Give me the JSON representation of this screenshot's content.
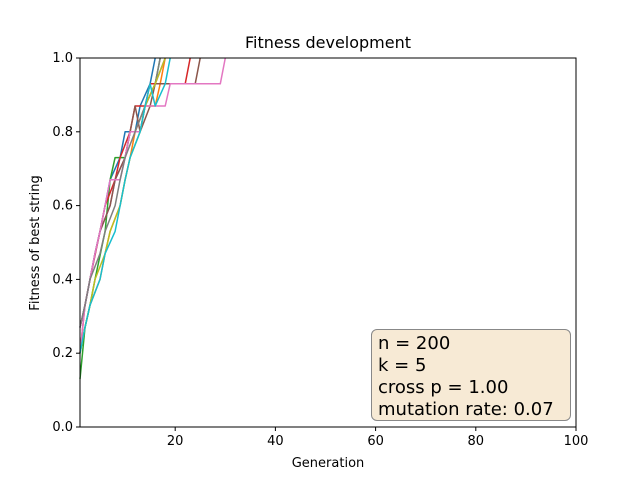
{
  "chart_data": {
    "type": "line",
    "title": "Fitness development",
    "xlabel": "Generation",
    "ylabel": "Fitness of best string",
    "xlim": [
      1,
      100
    ],
    "ylim": [
      0.0,
      1.0
    ],
    "xticks": [
      20,
      40,
      60,
      80,
      100
    ],
    "yticks": [
      0.0,
      0.2,
      0.4,
      0.6,
      0.8,
      1.0
    ],
    "grid": false,
    "colors": [
      "#1f77b4",
      "#ff7f0e",
      "#2ca02c",
      "#d62728",
      "#9467bd",
      "#8c564b",
      "#e377c2",
      "#7f7f7f",
      "#bcbd22",
      "#17becf"
    ],
    "series": [
      {
        "values": [
          [
            1,
            0.27
          ],
          [
            2,
            0.33
          ],
          [
            3,
            0.4
          ],
          [
            4,
            0.47
          ],
          [
            5,
            0.53
          ],
          [
            6,
            0.6
          ],
          [
            7,
            0.67
          ],
          [
            9,
            0.73
          ],
          [
            10,
            0.8
          ],
          [
            12,
            0.8
          ],
          [
            13,
            0.87
          ],
          [
            15,
            0.93
          ],
          [
            16,
            1.0
          ]
        ]
      },
      {
        "values": [
          [
            1,
            0.2
          ],
          [
            2,
            0.27
          ],
          [
            3,
            0.33
          ],
          [
            5,
            0.4
          ],
          [
            6,
            0.47
          ],
          [
            7,
            0.53
          ],
          [
            9,
            0.6
          ],
          [
            10,
            0.67
          ],
          [
            11,
            0.73
          ],
          [
            12,
            0.8
          ],
          [
            14,
            0.87
          ],
          [
            16,
            0.87
          ],
          [
            17,
            0.93
          ],
          [
            18,
            1.0
          ]
        ]
      },
      {
        "values": [
          [
            1,
            0.13
          ],
          [
            2,
            0.27
          ],
          [
            3,
            0.33
          ],
          [
            4,
            0.4
          ],
          [
            6,
            0.53
          ],
          [
            7,
            0.67
          ],
          [
            8,
            0.73
          ],
          [
            10,
            0.73
          ],
          [
            11,
            0.8
          ],
          [
            13,
            0.8
          ],
          [
            14,
            0.87
          ],
          [
            16,
            0.93
          ],
          [
            17,
            1.0
          ]
        ]
      },
      {
        "values": [
          [
            1,
            0.2
          ],
          [
            2,
            0.33
          ],
          [
            3,
            0.4
          ],
          [
            5,
            0.53
          ],
          [
            6,
            0.6
          ],
          [
            8,
            0.67
          ],
          [
            9,
            0.73
          ],
          [
            11,
            0.8
          ],
          [
            12,
            0.87
          ],
          [
            14,
            0.87
          ],
          [
            15,
            0.93
          ],
          [
            22,
            0.93
          ],
          [
            23,
            1.0
          ]
        ]
      },
      {
        "values": [
          [
            1,
            0.27
          ],
          [
            2,
            0.33
          ],
          [
            4,
            0.47
          ],
          [
            5,
            0.53
          ],
          [
            7,
            0.6
          ],
          [
            8,
            0.67
          ],
          [
            10,
            0.73
          ],
          [
            11,
            0.8
          ],
          [
            13,
            0.8
          ],
          [
            14,
            0.87
          ],
          [
            16,
            0.93
          ],
          [
            18,
            1.0
          ]
        ]
      },
      {
        "values": [
          [
            1,
            0.27
          ],
          [
            2,
            0.33
          ],
          [
            3,
            0.4
          ],
          [
            4,
            0.47
          ],
          [
            5,
            0.53
          ],
          [
            7,
            0.6
          ],
          [
            8,
            0.67
          ],
          [
            10,
            0.73
          ],
          [
            11,
            0.8
          ],
          [
            12,
            0.87
          ],
          [
            13,
            0.8
          ],
          [
            15,
            0.87
          ],
          [
            16,
            0.93
          ],
          [
            24,
            0.93
          ],
          [
            25,
            1.0
          ]
        ]
      },
      {
        "values": [
          [
            1,
            0.2
          ],
          [
            2,
            0.33
          ],
          [
            3,
            0.4
          ],
          [
            4,
            0.47
          ],
          [
            5,
            0.53
          ],
          [
            6,
            0.6
          ],
          [
            7,
            0.67
          ],
          [
            9,
            0.67
          ],
          [
            10,
            0.73
          ],
          [
            11,
            0.8
          ],
          [
            13,
            0.8
          ],
          [
            14,
            0.87
          ],
          [
            18,
            0.87
          ],
          [
            19,
            0.93
          ],
          [
            29,
            0.93
          ],
          [
            30,
            1.0
          ]
        ]
      },
      {
        "values": [
          [
            1,
            0.27
          ],
          [
            2,
            0.33
          ],
          [
            3,
            0.4
          ],
          [
            5,
            0.47
          ],
          [
            6,
            0.53
          ],
          [
            8,
            0.6
          ],
          [
            9,
            0.67
          ],
          [
            10,
            0.73
          ],
          [
            12,
            0.8
          ],
          [
            14,
            0.87
          ],
          [
            16,
            0.93
          ],
          [
            17,
            1.0
          ]
        ]
      },
      {
        "values": [
          [
            1,
            0.2
          ],
          [
            2,
            0.27
          ],
          [
            3,
            0.33
          ],
          [
            4,
            0.4
          ],
          [
            6,
            0.47
          ],
          [
            7,
            0.53
          ],
          [
            9,
            0.6
          ],
          [
            10,
            0.67
          ],
          [
            11,
            0.73
          ],
          [
            13,
            0.8
          ],
          [
            14,
            0.87
          ],
          [
            16,
            0.93
          ],
          [
            18,
            1.0
          ]
        ]
      },
      {
        "values": [
          [
            1,
            0.2
          ],
          [
            2,
            0.27
          ],
          [
            3,
            0.33
          ],
          [
            5,
            0.4
          ],
          [
            6,
            0.47
          ],
          [
            8,
            0.53
          ],
          [
            9,
            0.6
          ],
          [
            10,
            0.67
          ],
          [
            11,
            0.73
          ],
          [
            13,
            0.8
          ],
          [
            14,
            0.87
          ],
          [
            15,
            0.93
          ],
          [
            16,
            0.87
          ],
          [
            18,
            0.93
          ],
          [
            19,
            1.0
          ]
        ]
      }
    ]
  },
  "info_box": {
    "n": "n = 200",
    "k": "k = 5",
    "cross": "cross p = 1.00",
    "mutation": "mutation rate: 0.07"
  }
}
